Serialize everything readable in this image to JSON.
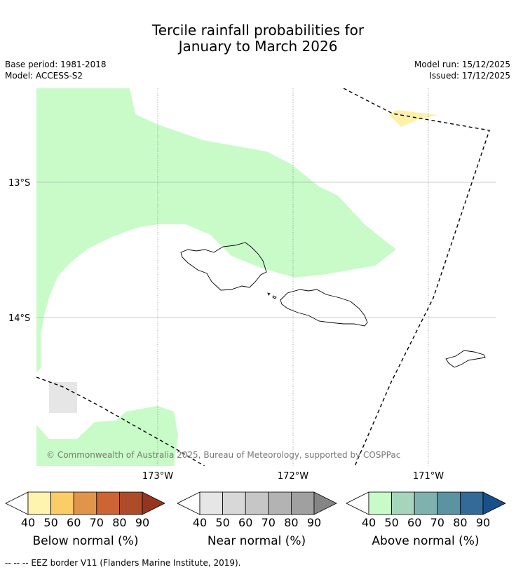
{
  "title_line1": "Tercile rainfall probabilities for",
  "title_line2": "January to March 2026",
  "meta": {
    "base_period": "Base period: 1981-2018",
    "model": "Model: ACCESS-S2",
    "model_run": "Model run: 15/12/2025",
    "issued": "Issued: 17/12/2025"
  },
  "map": {
    "lat_labels": [
      "13°S",
      "14°S"
    ],
    "lon_labels": [
      "173°W",
      "172°W",
      "171°W"
    ],
    "copyright": "© Commonwealth of Australia 2025, Bureau of Meteorology, supported by COSPPac"
  },
  "colorbars": [
    {
      "name": "below",
      "title": "Below normal (%)",
      "ticks": [
        "40",
        "50",
        "60",
        "70",
        "80",
        "90"
      ],
      "colors": [
        "#fff3b0",
        "#fccd66",
        "#e1954a",
        "#cd6433",
        "#ae4c2a",
        "#95351f"
      ]
    },
    {
      "name": "near",
      "title": "Near normal (%)",
      "ticks": [
        "40",
        "50",
        "60",
        "70",
        "80",
        "90"
      ],
      "colors": [
        "#e6e6e6",
        "#d8d8d8",
        "#c6c6c6",
        "#b3b3b3",
        "#a0a0a0",
        "#858585"
      ]
    },
    {
      "name": "above",
      "title": "Above normal (%)",
      "ticks": [
        "40",
        "50",
        "60",
        "70",
        "80",
        "90"
      ],
      "colors": [
        "#c9fbc9",
        "#a5d6bb",
        "#7fb2ae",
        "#5b93a1",
        "#336a98",
        "#17508a"
      ]
    }
  ],
  "footer": "--  --  -- EEZ border V11 (Flanders Marine Institute, 2019)."
}
